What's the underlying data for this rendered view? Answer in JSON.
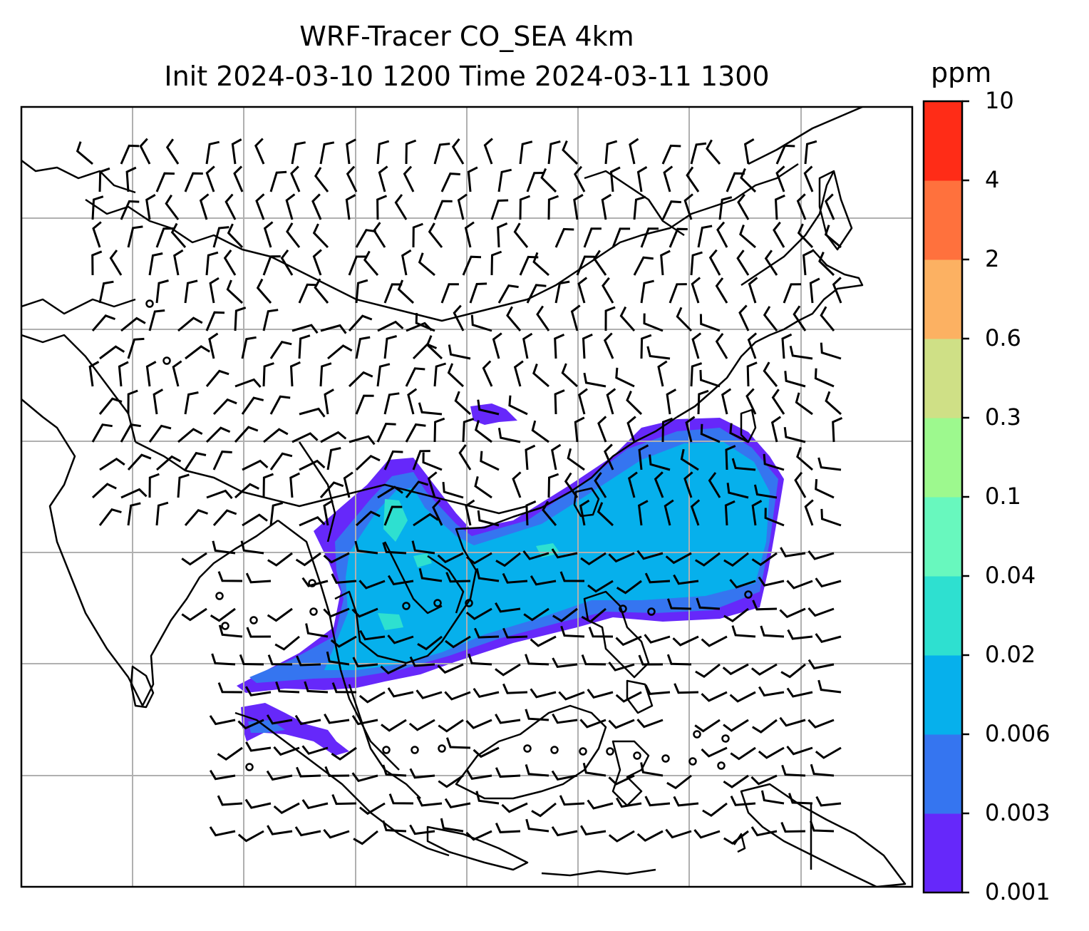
{
  "title": {
    "line1": "WRF-Tracer CO_SEA 4km",
    "line2": "Init 2024-03-10 1200 Time 2024-03-11 1300"
  },
  "colorbar": {
    "unit": "ppm",
    "levels": [
      "0.001",
      "0.003",
      "0.006",
      "0.02",
      "0.04",
      "0.1",
      "0.3",
      "0.6",
      "2",
      "4",
      "10"
    ],
    "colors": [
      "#6628fa",
      "#3575f0",
      "#06b0ec",
      "#2ee0d0",
      "#68f8be",
      "#9df98e",
      "#cfe086",
      "#fcb162",
      "#ff713d",
      "#ff2c17"
    ]
  },
  "map": {
    "gridlines": true,
    "coastline_color": "#000000",
    "barb_color": "#000000",
    "grid_color": "#b0b0b0"
  }
}
